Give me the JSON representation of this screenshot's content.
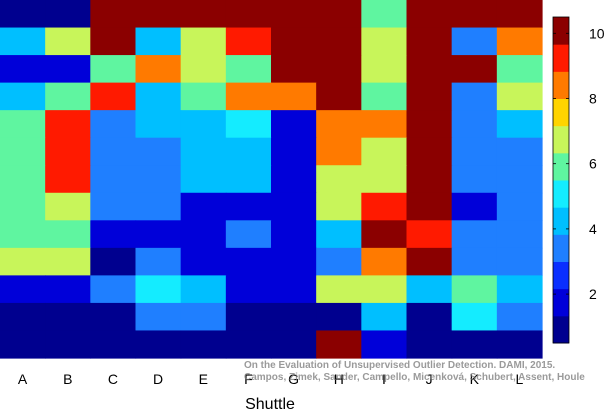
{
  "chart_data": {
    "type": "heatmap",
    "title": "",
    "xlabel": "Shuttle",
    "ylabel": "",
    "columns": [
      "A",
      "B",
      "C",
      "D",
      "E",
      "F",
      "G",
      "H",
      "I",
      "J",
      "K",
      "L"
    ],
    "colorbar": {
      "min": 0.5,
      "max": 10.5,
      "ticks": [
        "2",
        "4",
        "6",
        "8",
        "10"
      ],
      "tick_values": [
        2,
        4,
        6,
        8,
        10
      ]
    },
    "palette": [
      "#00008f",
      "#0000d9",
      "#0a2fff",
      "#1f7fff",
      "#00bfff",
      "#14ecff",
      "#5ff5a0",
      "#c8f55a",
      "#ffd400",
      "#ff7a00",
      "#ff1a00",
      "#8b0000"
    ],
    "values": [
      [
        1,
        1,
        10,
        10,
        10,
        10,
        10,
        10,
        6,
        10,
        10,
        10
      ],
      [
        4,
        7,
        10,
        4,
        7,
        9,
        10,
        10,
        7,
        10,
        3,
        8
      ],
      [
        2,
        2,
        6,
        8,
        7,
        6,
        10,
        10,
        7,
        10,
        10,
        6
      ],
      [
        4,
        6,
        9,
        4,
        6,
        8,
        8,
        10,
        6,
        10,
        3,
        7
      ],
      [
        6,
        9,
        3,
        4,
        4,
        5,
        2,
        8,
        8,
        10,
        3,
        4
      ],
      [
        6,
        9,
        3,
        3,
        4,
        4,
        2,
        8,
        7,
        10,
        3,
        3
      ],
      [
        6,
        9,
        3,
        3,
        4,
        4,
        2,
        7,
        7,
        10,
        3,
        3
      ],
      [
        6,
        7,
        3,
        3,
        2,
        2,
        2,
        7,
        9,
        10,
        2,
        3
      ],
      [
        6,
        6,
        2,
        2,
        2,
        3,
        2,
        4,
        10,
        9,
        3,
        3
      ],
      [
        7,
        7,
        1,
        3,
        2,
        2,
        2,
        3,
        8,
        10,
        3,
        3
      ],
      [
        2,
        2,
        3,
        5,
        4,
        2,
        2,
        7,
        7,
        4,
        6,
        4
      ],
      [
        1,
        1,
        1,
        3,
        3,
        1,
        1,
        1,
        4,
        1,
        5,
        3
      ],
      [
        1,
        1,
        1,
        1,
        1,
        1,
        1,
        10,
        2,
        1,
        1,
        1
      ]
    ]
  },
  "credit": {
    "line1": "On the Evaluation of Unsupervised Outlier Detection. DAMI, 2015.",
    "line2": "Campos, Zimek, Sander, Campello, Micenková, Schubert, Assent, Houle"
  }
}
